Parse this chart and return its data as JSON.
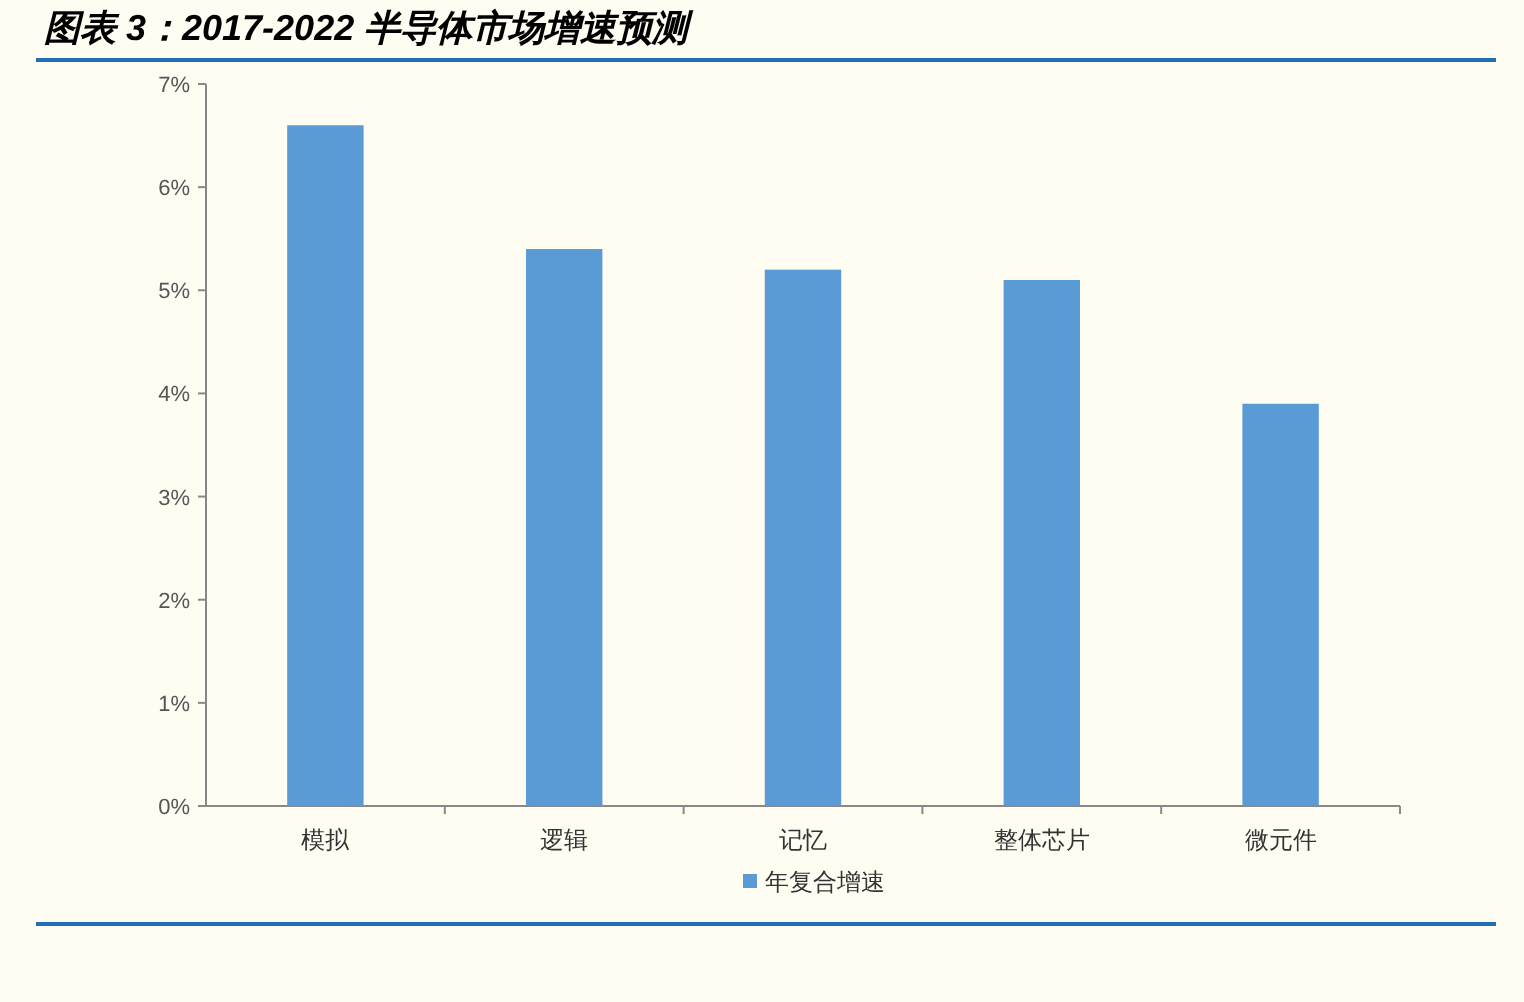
{
  "chart_data": {
    "type": "bar",
    "title": "图表 3：2017-2022 半导体市场增速预测",
    "categories": [
      "模拟",
      "逻辑",
      "记忆",
      "整体芯片",
      "微元件"
    ],
    "series": [
      {
        "name": "年复合增速",
        "color": "#5b9bd5",
        "values": [
          6.6,
          5.4,
          5.2,
          5.1,
          3.9
        ]
      }
    ],
    "ylim": [
      0,
      7
    ],
    "yticks": [
      {
        "value": 0,
        "label": "0%"
      },
      {
        "value": 1,
        "label": "1%"
      },
      {
        "value": 2,
        "label": "2%"
      },
      {
        "value": 3,
        "label": "3%"
      },
      {
        "value": 4,
        "label": "4%"
      },
      {
        "value": 5,
        "label": "5%"
      },
      {
        "value": 6,
        "label": "6%"
      },
      {
        "value": 7,
        "label": "7%"
      }
    ],
    "grid": false,
    "legend": "bottom"
  }
}
